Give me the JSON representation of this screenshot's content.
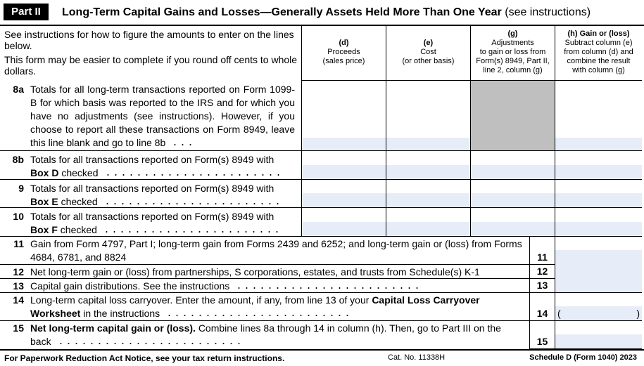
{
  "header": {
    "part": "Part II",
    "title": "Long-Term Capital Gains and Losses—Generally Assets Held More Than One Year",
    "note": "(see instructions)"
  },
  "intro": [
    "See instructions for how to figure the amounts to enter on the lines below.",
    "This form may be easier to complete if you round off cents to whole dollars."
  ],
  "columns": [
    {
      "letter": "(d)",
      "desc": [
        "Proceeds",
        "(sales price)"
      ]
    },
    {
      "letter": "(e)",
      "desc": [
        "Cost",
        "(or other basis)"
      ]
    },
    {
      "letter": "(g)",
      "desc": [
        "Adjustments",
        "to gain or loss from",
        "Form(s) 8949, Part II,",
        "line 2, column (g)"
      ]
    },
    {
      "letter": "(h) Gain or (loss)",
      "desc": [
        "Subtract column (e)",
        "from column (d) and",
        "combine the result",
        "with column (g)"
      ]
    }
  ],
  "rows": [
    {
      "number": "8a",
      "text": "Totals for all long-term transactions reported on Form 1099-B for which basis was reported to the IRS and for which you have no adjustments (see instructions). However, if you choose to report all these transactions on Form 8949, leave this line blank and go to line 8b"
    },
    {
      "number": "8b",
      "text": "Totals for all transactions reported on Form(s) 8949 with",
      "bold": "Box D",
      "rest": "checked"
    },
    {
      "number": "9",
      "text": "Totals for all transactions reported on Form(s) 8949 with",
      "bold": "Box E",
      "rest": "checked"
    },
    {
      "number": "10",
      "text": "Totals for all transactions reported on Form(s) 8949 with",
      "bold": "Box F",
      "rest": "checked"
    }
  ],
  "lines": [
    {
      "number": "11",
      "text": "Gain from Form 4797, Part I; long-term gain from Forms 2439 and 6252; and long-term gain or (loss) from Forms 4684, 6781, and 8824"
    },
    {
      "number": "12",
      "text": "Net long-term gain or (loss) from partnerships, S corporations, estates, and trusts from Schedule(s) K-1"
    },
    {
      "number": "13",
      "text": "Capital gain distributions. See the instructions"
    },
    {
      "number": "14",
      "text": "Long-term capital loss carryover. Enter the amount, if any, from line 13 of your",
      "bold": "Capital Loss Carryover Worksheet",
      "rest": "in the instructions",
      "open": "(",
      "close": ")"
    },
    {
      "number": "15",
      "bold": "Net long-term capital gain or (loss).",
      "text": "Combine lines 8a through 14 in column (h). Then, go to Part III on the back"
    }
  ],
  "footer": {
    "left": "For Paperwork Reduction Act Notice, see your tax return instructions.",
    "center": "Cat. No. 11338H",
    "right": "Schedule D (Form 1040) 2023"
  }
}
